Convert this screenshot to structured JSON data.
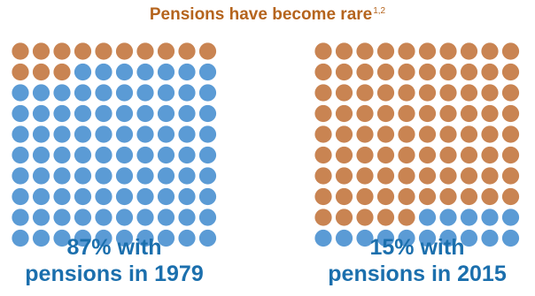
{
  "title": {
    "text": "Pensions have become rare",
    "superscript": "1,2"
  },
  "colors": {
    "with_pension": "#5b9bd5",
    "without_pension": "#c98452",
    "title": "#b5641d",
    "caption": "#1b6fad"
  },
  "chart_data": [
    {
      "type": "waffle",
      "grid": {
        "rows": 10,
        "cols": 10
      },
      "year": 1979,
      "percent_with_pension": 87,
      "percent_without_pension": 13,
      "fill_order": "top-left, row by row; without-pension dots first",
      "caption_line1": "87% with",
      "caption_line2": "pensions in 1979"
    },
    {
      "type": "waffle",
      "grid": {
        "rows": 10,
        "cols": 10
      },
      "year": 2015,
      "percent_with_pension": 15,
      "percent_without_pension": 85,
      "fill_order": "top-left, row by row; without-pension dots first",
      "caption_line1": "15% with",
      "caption_line2": "pensions in 2015"
    }
  ]
}
